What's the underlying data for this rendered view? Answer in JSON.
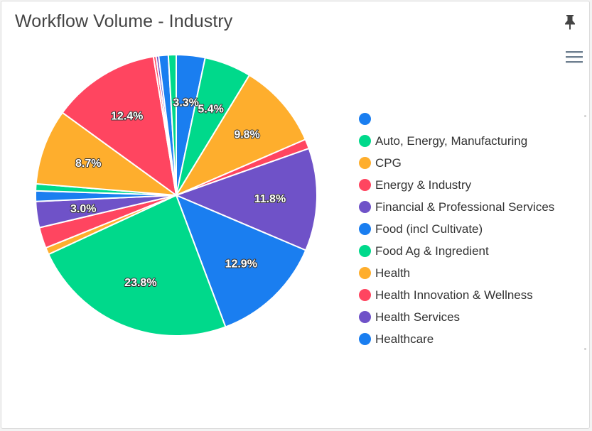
{
  "card": {
    "title": "Workflow Volume - Industry",
    "pin_icon": "pin-icon",
    "menu_icon": "hamburger-menu-icon"
  },
  "chart_data": {
    "type": "pie",
    "start_angle_deg": 0,
    "slices": [
      {
        "name": "",
        "value": 3.3,
        "color": "#1a7ef0",
        "label": "3.3%"
      },
      {
        "name": "Auto, Energy, Manufacturing",
        "value": 5.4,
        "color": "#00d98b",
        "label": "5.4%"
      },
      {
        "name": "CPG",
        "value": 9.8,
        "color": "#feae2d",
        "label": "9.8%"
      },
      {
        "name": "Energy & Industry",
        "value": 1.1,
        "color": "#ff4560",
        "label": ""
      },
      {
        "name": "Financial & Professional Services",
        "value": 11.8,
        "color": "#6f52c8",
        "label": "11.8%"
      },
      {
        "name": "Food (incl Cultivate)",
        "value": 12.9,
        "color": "#1a7ef0",
        "label": "12.9%"
      },
      {
        "name": "Food Ag & Ingredient",
        "value": 23.8,
        "color": "#00d98b",
        "label": "23.8%"
      },
      {
        "name": "Health",
        "value": 0.8,
        "color": "#feae2d",
        "label": ""
      },
      {
        "name": "Health Innovation & Wellness",
        "value": 2.4,
        "color": "#ff4560",
        "label": ""
      },
      {
        "name": "Health Services",
        "value": 3.0,
        "color": "#6f52c8",
        "label": "3.0%"
      },
      {
        "name": "Healthcare",
        "value": 1.2,
        "color": "#1a7ef0",
        "label": ""
      },
      {
        "name": "",
        "value": 0.8,
        "color": "#00d98b",
        "label": ""
      },
      {
        "name": "",
        "value": 8.7,
        "color": "#feae2d",
        "label": "8.7%"
      },
      {
        "name": "",
        "value": 12.4,
        "color": "#ff4560",
        "label": "12.4%"
      },
      {
        "name": "",
        "value": 0.3,
        "color": "#ff4560",
        "label": ""
      },
      {
        "name": "",
        "value": 0.3,
        "color": "#6f52c8",
        "label": ""
      },
      {
        "name": "",
        "value": 1.1,
        "color": "#1a7ef0",
        "label": ""
      },
      {
        "name": "",
        "value": 0.9,
        "color": "#00d98b",
        "label": ""
      }
    ],
    "legend": [
      {
        "name": "",
        "color": "#1a7ef0"
      },
      {
        "name": "Auto, Energy, Manufacturing",
        "color": "#00d98b"
      },
      {
        "name": "CPG",
        "color": "#feae2d"
      },
      {
        "name": "Energy & Industry",
        "color": "#ff4560"
      },
      {
        "name": "Financial & Professional Services",
        "color": "#6f52c8"
      },
      {
        "name": "Food (incl Cultivate)",
        "color": "#1a7ef0"
      },
      {
        "name": "Food Ag & Ingredient",
        "color": "#00d98b"
      },
      {
        "name": "Health",
        "color": "#feae2d"
      },
      {
        "name": "Health Innovation & Wellness",
        "color": "#ff4560"
      },
      {
        "name": "Health Services",
        "color": "#6f52c8"
      },
      {
        "name": "Healthcare",
        "color": "#1a7ef0"
      }
    ],
    "legend_placement": "right"
  }
}
